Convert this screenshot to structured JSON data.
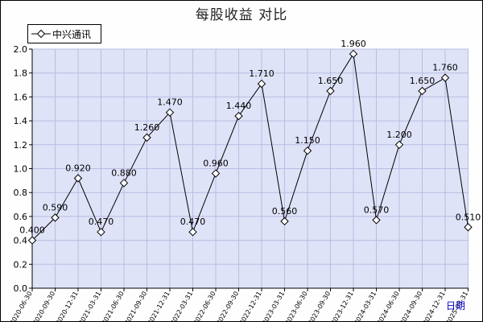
{
  "chart_data": {
    "type": "line",
    "title": "每股收益  对比",
    "xlabel": "日期",
    "ylabel": "",
    "ylim": [
      0.0,
      2.0
    ],
    "y_ticks": [
      "0.0",
      "0.2",
      "0.4",
      "0.6",
      "0.8",
      "1.0",
      "1.2",
      "1.4",
      "1.6",
      "1.8",
      "2.0"
    ],
    "grid": true,
    "legend_position": "top-left",
    "categories": [
      "2020-06-30",
      "2020-09-30",
      "2020-12-31",
      "2021-03-31",
      "2021-06-30",
      "2021-09-30",
      "2021-12-31",
      "2022-03-31",
      "2022-06-30",
      "2022-09-30",
      "2022-12-31",
      "2023-03-31",
      "2023-06-30",
      "2023-09-30",
      "2023-12-31",
      "2024-03-31",
      "2024-06-30",
      "2024-09-30",
      "2024-12-31",
      "2025-03-31"
    ],
    "series": [
      {
        "name": "中兴通讯",
        "values": [
          0.4,
          0.59,
          0.92,
          0.47,
          0.88,
          1.26,
          1.47,
          0.47,
          0.96,
          1.44,
          1.71,
          0.56,
          1.15,
          1.65,
          1.96,
          0.57,
          1.2,
          1.65,
          1.76,
          0.51
        ],
        "labels": [
          "0.400",
          "0.590",
          "0.920",
          "0.470",
          "0.880",
          "1.260",
          "1.470",
          "0.470",
          "0.960",
          "1.440",
          "1.710",
          "0.560",
          "1.150",
          "1.650",
          "1.960",
          "0.570",
          "1.200",
          "1.650",
          "1.760",
          "0.510"
        ]
      }
    ],
    "colors": {
      "plot_bg": "#dfe3f8",
      "grid": "#b8bde0",
      "line": "#000000",
      "marker_fill": "#ffffff",
      "xlabel": "#0000cc"
    }
  }
}
